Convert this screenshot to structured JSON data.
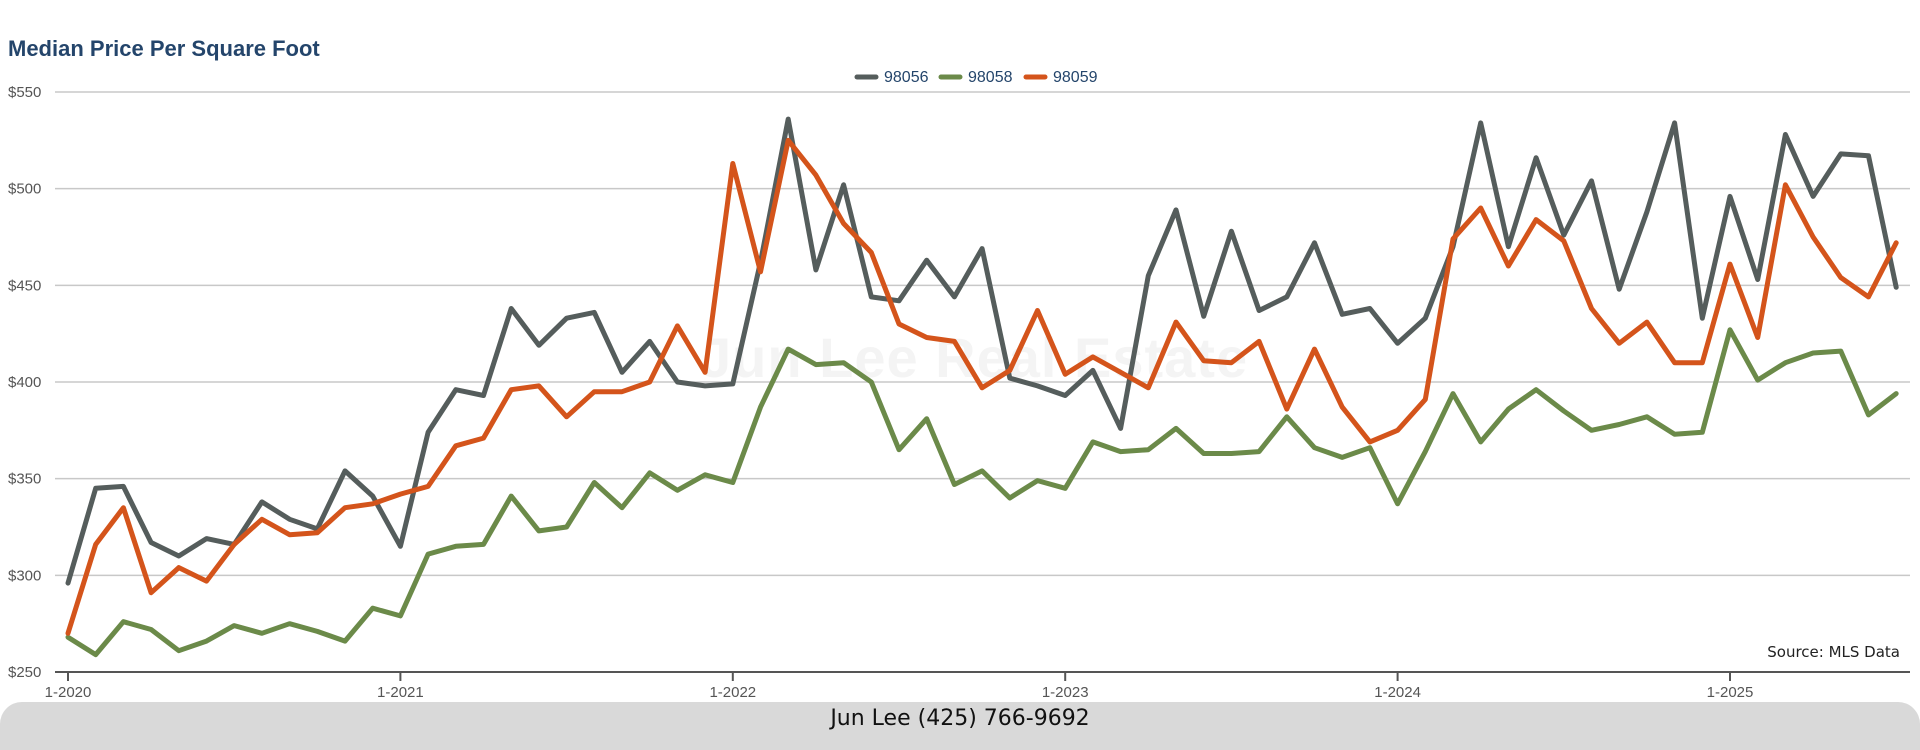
{
  "chart_data": {
    "type": "line",
    "title": "Median Price Per Square Foot",
    "xlabel": "",
    "ylabel": "",
    "ylim": [
      250,
      550
    ],
    "y_ticks": [
      "$250",
      "$300",
      "$350",
      "$400",
      "$450",
      "$500",
      "$550"
    ],
    "y_tick_values": [
      250,
      300,
      350,
      400,
      450,
      500,
      550
    ],
    "x_ticks": [
      "1-2020",
      "1-2021",
      "1-2022",
      "1-2023",
      "1-2024",
      "1-2025"
    ],
    "x_tick_positions": [
      0,
      12,
      24,
      36,
      48,
      60
    ],
    "x": [
      "1-2020",
      "2-2020",
      "3-2020",
      "4-2020",
      "5-2020",
      "6-2020",
      "7-2020",
      "8-2020",
      "9-2020",
      "10-2020",
      "11-2020",
      "12-2020",
      "1-2021",
      "2-2021",
      "3-2021",
      "4-2021",
      "5-2021",
      "6-2021",
      "7-2021",
      "8-2021",
      "9-2021",
      "10-2021",
      "11-2021",
      "12-2021",
      "1-2022",
      "2-2022",
      "3-2022",
      "4-2022",
      "5-2022",
      "6-2022",
      "7-2022",
      "8-2022",
      "9-2022",
      "10-2022",
      "11-2022",
      "12-2022",
      "1-2023",
      "2-2023",
      "3-2023",
      "4-2023",
      "5-2023",
      "6-2023",
      "7-2023",
      "8-2023",
      "9-2023",
      "10-2023",
      "11-2023",
      "12-2023",
      "1-2024",
      "2-2024",
      "3-2024",
      "4-2024",
      "5-2024",
      "6-2024",
      "7-2024",
      "8-2024",
      "9-2024",
      "10-2024",
      "11-2024",
      "12-2024",
      "1-2025",
      "2-2025",
      "3-2025",
      "4-2025",
      "5-2025",
      "6-2025",
      "7-2025"
    ],
    "grid": true,
    "legend_position": "top-center",
    "series": [
      {
        "name": "98056",
        "color": "#555d5c",
        "values": [
          296,
          345,
          346,
          317,
          310,
          319,
          316,
          338,
          329,
          324,
          354,
          341,
          315,
          374,
          396,
          393,
          438,
          419,
          433,
          436,
          405,
          421,
          400,
          398,
          399,
          462,
          536,
          458,
          502,
          444,
          442,
          463,
          444,
          469,
          402,
          398,
          393,
          406,
          376,
          455,
          489,
          434,
          478,
          437,
          444,
          472,
          435,
          438,
          420,
          433,
          470,
          534,
          470,
          516,
          476,
          504,
          448,
          488,
          534,
          433,
          496,
          453,
          528,
          496,
          518,
          517,
          449
        ]
      },
      {
        "name": "98058",
        "color": "#6b8a49",
        "values": [
          268,
          259,
          276,
          272,
          261,
          266,
          274,
          270,
          275,
          271,
          266,
          283,
          279,
          311,
          315,
          316,
          341,
          323,
          325,
          348,
          335,
          353,
          344,
          352,
          348,
          387,
          417,
          409,
          410,
          400,
          365,
          381,
          347,
          354,
          340,
          349,
          345,
          369,
          364,
          365,
          376,
          363,
          363,
          364,
          382,
          366,
          361,
          366,
          337,
          364,
          394,
          369,
          386,
          396,
          385,
          375,
          378,
          382,
          373,
          374,
          427,
          401,
          410,
          415,
          416,
          383,
          394
        ]
      },
      {
        "name": "98059",
        "color": "#d4541b",
        "values": [
          270,
          316,
          335,
          291,
          304,
          297,
          316,
          329,
          321,
          322,
          335,
          337,
          342,
          346,
          367,
          371,
          396,
          398,
          382,
          395,
          395,
          400,
          429,
          405,
          513,
          457,
          525,
          507,
          482,
          467,
          430,
          423,
          421,
          397,
          406,
          437,
          404,
          413,
          405,
          397,
          431,
          411,
          410,
          421,
          386,
          417,
          387,
          369,
          375,
          391,
          474,
          490,
          460,
          484,
          473,
          438,
          420,
          431,
          410,
          410,
          461,
          423,
          502,
          475,
          454,
          444,
          472
        ]
      }
    ]
  },
  "watermark": "Jun Lee Real Estate",
  "source_note": "Source: MLS Data",
  "footer": {
    "contact": "Jun Lee (425) 766-9692"
  },
  "colors": {
    "title": "#24456b",
    "gridline": "#c8c8c8",
    "footer_bg": "#d9d9d9"
  }
}
